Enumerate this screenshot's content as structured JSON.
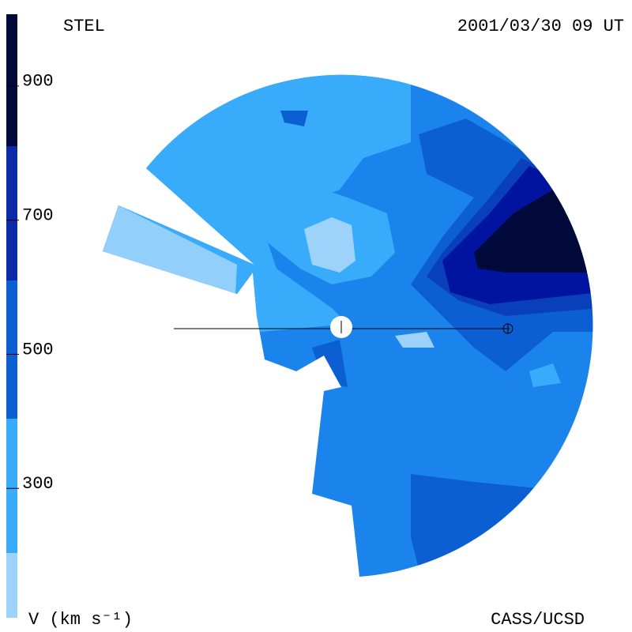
{
  "labels": {
    "top_left": "STEL",
    "top_right": "2001/03/30 09 UT",
    "bottom_left": "V (km s⁻¹)",
    "bottom_right": "CASS/UCSD"
  },
  "colorbar": {
    "vlim": [
      100,
      1000
    ],
    "ticks": [
      300,
      500,
      700,
      900
    ]
  }
}
